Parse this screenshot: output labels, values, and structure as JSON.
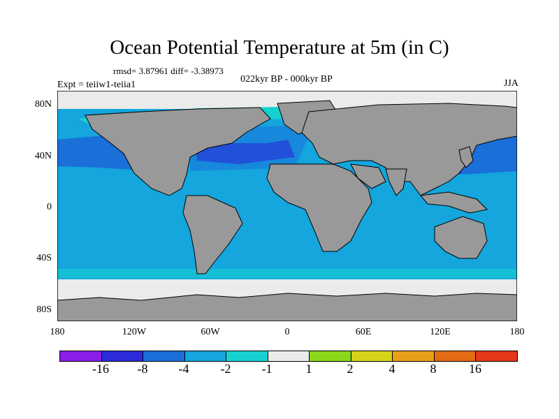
{
  "title": "Ocean Potential Temperature at 5m (in C)",
  "stats": "rmsd= 3.87961 diff= -3.38973",
  "experiment": "Expt = teiiw1-teiia1",
  "period": "022kyr BP - 000kyr BP",
  "season": "JJA",
  "lat_labels": [
    "80N",
    "40N",
    "0",
    "40S",
    "80S"
  ],
  "lon_labels": [
    "180",
    "120W",
    "60W",
    "0",
    "60E",
    "120E",
    "180"
  ],
  "colorbar": {
    "colors": [
      "#8a1ee6",
      "#2d2bd9",
      "#1a6fd8",
      "#14a6dd",
      "#17d1d1",
      "#ebebeb",
      "#8ad81a",
      "#d6d21a",
      "#e8a01a",
      "#e36b14",
      "#e3391a"
    ],
    "labels": [
      "-16",
      "-8",
      "-4",
      "-2",
      "-1",
      "1",
      "2",
      "4",
      "8",
      "16"
    ]
  },
  "colors": {
    "land": "#999999",
    "ocean": "#14a6dd",
    "ice": "#ebebeb",
    "cold": "#2d2bd9",
    "mid": "#1a6fd8",
    "light": "#17d1d1"
  }
}
